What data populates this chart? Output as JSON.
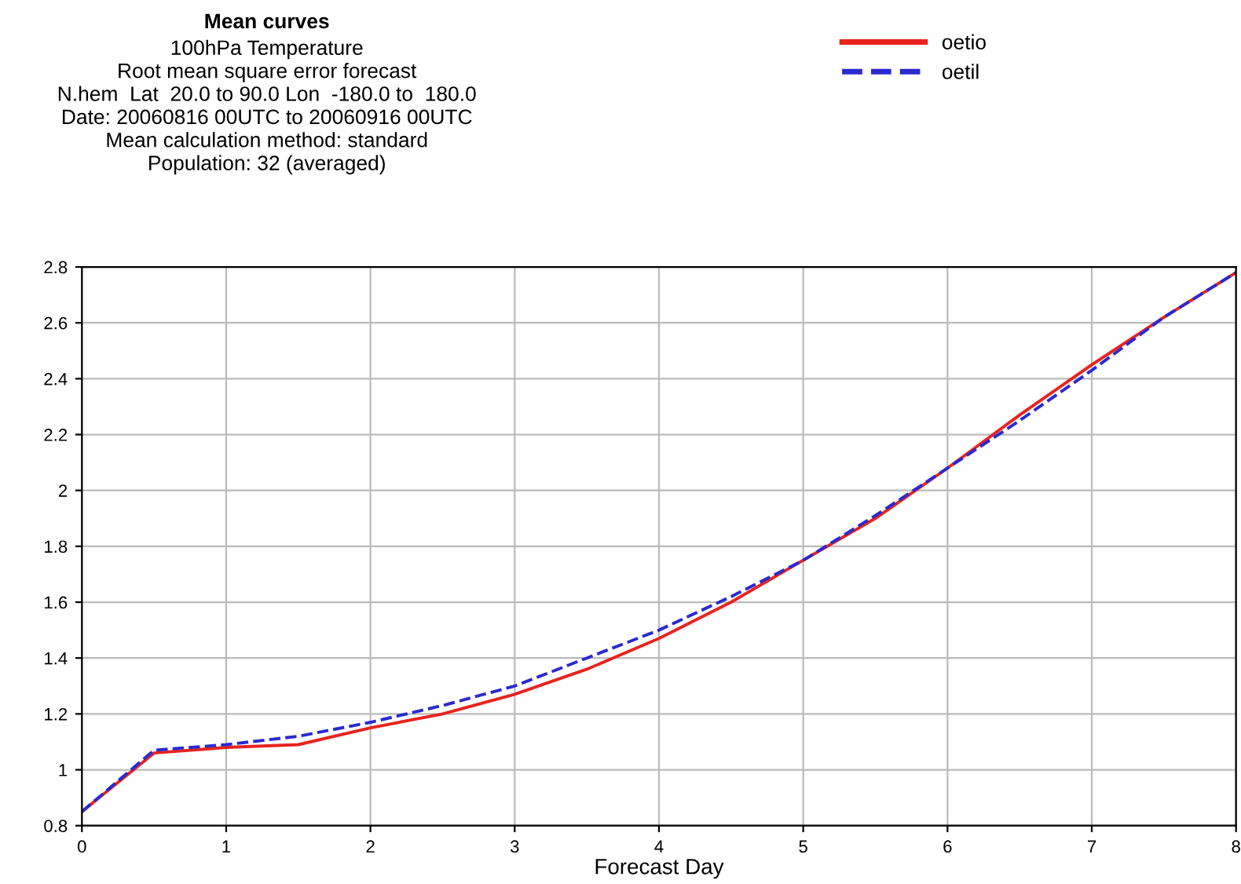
{
  "chart_data": {
    "type": "line",
    "title": "Mean curves",
    "subtitle": "100hPa Temperature\nRoot mean square error forecast\nN.hem  Lat  20.0 to 90.0 Lon  -180.0 to  180.0\nDate: 20060816 00UTC to 20060916 00UTC\nMean calculation method: standard\nPopulation: 32 (averaged)",
    "xlabel": "Forecast Day",
    "x": [
      0,
      0.5,
      1,
      1.5,
      2,
      2.5,
      3,
      3.5,
      4,
      4.5,
      5,
      5.5,
      6,
      6.5,
      7,
      7.5,
      8
    ],
    "series": [
      {
        "name": "oetio",
        "color": "#e8231e",
        "line_style": "solid",
        "values": [
          0.85,
          1.06,
          1.08,
          1.09,
          1.15,
          1.2,
          1.27,
          1.36,
          1.47,
          1.6,
          1.75,
          1.9,
          2.08,
          2.27,
          2.45,
          2.62,
          2.78
        ]
      },
      {
        "name": "oetil",
        "color": "#2a2ad0",
        "line_style": "dashed",
        "values": [
          0.85,
          1.07,
          1.09,
          1.12,
          1.17,
          1.23,
          1.3,
          1.4,
          1.5,
          1.62,
          1.75,
          1.91,
          2.08,
          2.25,
          2.43,
          2.62,
          2.78
        ]
      }
    ],
    "xlim": [
      0,
      8
    ],
    "xticks": [
      0,
      1,
      2,
      3,
      4,
      5,
      6,
      7,
      8
    ],
    "ylim": [
      0.8,
      2.8
    ],
    "yticks": [
      0.8,
      1,
      1.2,
      1.4,
      1.6,
      1.8,
      2,
      2.2,
      2.4,
      2.6,
      2.8
    ],
    "grid": true,
    "legend": "top right",
    "marker": "none"
  }
}
